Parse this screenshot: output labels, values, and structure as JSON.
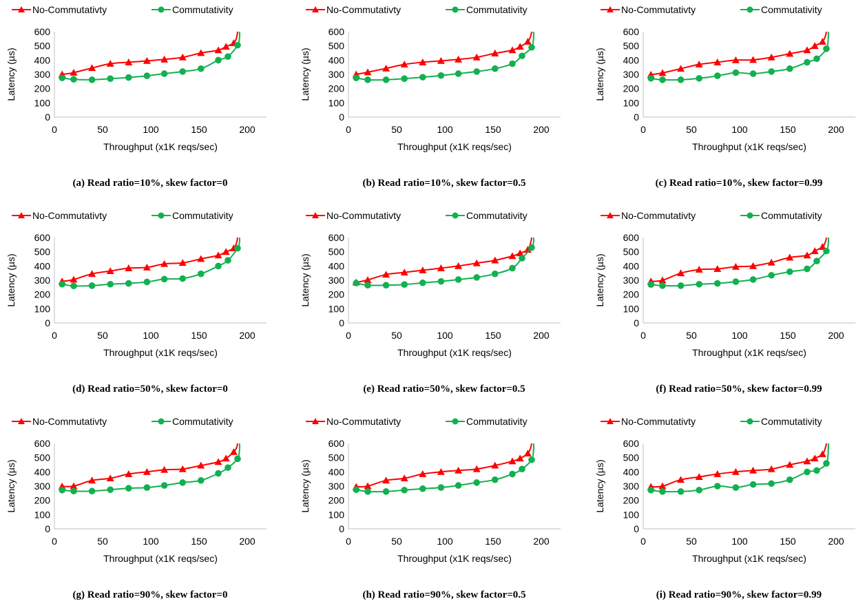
{
  "legend": {
    "series_a": "No-Commutativty",
    "series_b": "Commutativity"
  },
  "colors": {
    "series_a": "#ff0000",
    "series_b": "#12b050",
    "axis": "#bfbfbf"
  },
  "chart_data": [
    {
      "type": "line",
      "caption": "(a) Read ratio=10%, skew factor=0",
      "xlabel": "Throughput (x1K reqs/sec)",
      "ylabel": "Latency (µs)",
      "xlim": [
        0,
        220
      ],
      "ylim": [
        0,
        600
      ],
      "xticks": [
        0,
        50,
        100,
        150,
        200
      ],
      "yticks": [
        0,
        100,
        200,
        300,
        400,
        500,
        600
      ],
      "grid": false,
      "legend_position": "top",
      "series": [
        {
          "name": "No-Commutativty",
          "marker": "triangle",
          "x": [
            8,
            20,
            39,
            58,
            77,
            96,
            114,
            133,
            152,
            170,
            178,
            186,
            189,
            190
          ],
          "y": [
            300,
            312,
            345,
            375,
            385,
            395,
            405,
            420,
            450,
            470,
            495,
            520,
            560,
            600
          ]
        },
        {
          "name": "Commutativity",
          "marker": "circle",
          "x": [
            8,
            20,
            39,
            58,
            77,
            96,
            114,
            133,
            152,
            170,
            180,
            190,
            192,
            192
          ],
          "y": [
            275,
            265,
            262,
            270,
            278,
            290,
            305,
            320,
            340,
            400,
            425,
            505,
            560,
            600
          ]
        }
      ]
    },
    {
      "type": "line",
      "caption": "(b) Read ratio=10%, skew factor=0.5",
      "xlabel": "Throughput (x1K reqs/sec)",
      "ylabel": "Latency (µs)",
      "xlim": [
        0,
        220
      ],
      "ylim": [
        0,
        600
      ],
      "xticks": [
        0,
        50,
        100,
        150,
        200
      ],
      "yticks": [
        0,
        100,
        200,
        300,
        400,
        500,
        600
      ],
      "grid": false,
      "legend_position": "top",
      "series": [
        {
          "name": "No-Commutativty",
          "marker": "triangle",
          "x": [
            8,
            20,
            39,
            58,
            77,
            96,
            114,
            133,
            152,
            170,
            178,
            186,
            189,
            190
          ],
          "y": [
            300,
            315,
            342,
            370,
            385,
            395,
            405,
            420,
            448,
            470,
            495,
            530,
            570,
            600
          ]
        },
        {
          "name": "Commutativity",
          "marker": "circle",
          "x": [
            8,
            20,
            39,
            58,
            77,
            96,
            114,
            133,
            152,
            170,
            180,
            190,
            192,
            192
          ],
          "y": [
            275,
            262,
            262,
            270,
            280,
            292,
            305,
            320,
            340,
            375,
            430,
            490,
            560,
            600
          ]
        }
      ]
    },
    {
      "type": "line",
      "caption": "(c) Read ratio=10%, skew factor=0.99",
      "xlabel": "Throughput (x1K reqs/sec)",
      "ylabel": "Latency (µs)",
      "xlim": [
        0,
        220
      ],
      "ylim": [
        0,
        600
      ],
      "xticks": [
        0,
        50,
        100,
        150,
        200
      ],
      "yticks": [
        0,
        100,
        200,
        300,
        400,
        500,
        600
      ],
      "grid": false,
      "legend_position": "top",
      "series": [
        {
          "name": "No-Commutativty",
          "marker": "triangle",
          "x": [
            8,
            20,
            39,
            58,
            77,
            96,
            114,
            133,
            152,
            170,
            178,
            186,
            189,
            190
          ],
          "y": [
            298,
            310,
            340,
            370,
            385,
            400,
            402,
            420,
            445,
            470,
            500,
            530,
            570,
            600
          ]
        },
        {
          "name": "Commutativity",
          "marker": "circle",
          "x": [
            8,
            20,
            39,
            58,
            77,
            96,
            114,
            133,
            152,
            170,
            180,
            190,
            192,
            192
          ],
          "y": [
            272,
            262,
            262,
            272,
            290,
            312,
            305,
            320,
            340,
            385,
            410,
            480,
            560,
            600
          ]
        }
      ]
    },
    {
      "type": "line",
      "caption": "(d) Read ratio=50%, skew factor=0",
      "xlabel": "Throughput (x1K reqs/sec)",
      "ylabel": "Latency (µs)",
      "xlim": [
        0,
        220
      ],
      "ylim": [
        0,
        600
      ],
      "xticks": [
        0,
        50,
        100,
        150,
        200
      ],
      "yticks": [
        0,
        100,
        200,
        300,
        400,
        500,
        600
      ],
      "grid": false,
      "legend_position": "top",
      "series": [
        {
          "name": "No-Commutativty",
          "marker": "triangle",
          "x": [
            8,
            20,
            39,
            58,
            77,
            96,
            114,
            133,
            152,
            170,
            178,
            186,
            189,
            190
          ],
          "y": [
            292,
            305,
            345,
            365,
            385,
            390,
            415,
            422,
            450,
            475,
            500,
            525,
            565,
            600
          ]
        },
        {
          "name": "Commutativity",
          "marker": "circle",
          "x": [
            8,
            20,
            39,
            58,
            77,
            96,
            114,
            133,
            152,
            170,
            180,
            190,
            192,
            192
          ],
          "y": [
            272,
            260,
            262,
            272,
            278,
            288,
            308,
            312,
            345,
            400,
            440,
            525,
            570,
            600
          ]
        }
      ]
    },
    {
      "type": "line",
      "caption": "(e) Read ratio=50%, skew factor=0.5",
      "xlabel": "Throughput (x1K reqs/sec)",
      "ylabel": "Latency (µs)",
      "xlim": [
        0,
        220
      ],
      "ylim": [
        0,
        600
      ],
      "xticks": [
        0,
        50,
        100,
        150,
        200
      ],
      "yticks": [
        0,
        100,
        200,
        300,
        400,
        500,
        600
      ],
      "grid": false,
      "legend_position": "top",
      "series": [
        {
          "name": "No-Commutativty",
          "marker": "triangle",
          "x": [
            8,
            20,
            39,
            58,
            77,
            96,
            114,
            133,
            152,
            170,
            178,
            186,
            189,
            190
          ],
          "y": [
            285,
            302,
            340,
            355,
            370,
            385,
            400,
            420,
            440,
            470,
            490,
            515,
            565,
            600
          ]
        },
        {
          "name": "Commutativity",
          "marker": "circle",
          "x": [
            8,
            20,
            39,
            58,
            77,
            96,
            114,
            133,
            152,
            170,
            180,
            190,
            192,
            192
          ],
          "y": [
            280,
            265,
            265,
            270,
            282,
            292,
            305,
            320,
            345,
            385,
            455,
            530,
            570,
            600
          ]
        }
      ]
    },
    {
      "type": "line",
      "caption": "(f) Read ratio=50%, skew factor=0.99",
      "xlabel": "Throughput (x1K reqs/sec)",
      "ylabel": "Latency (µs)",
      "xlim": [
        0,
        220
      ],
      "ylim": [
        0,
        600
      ],
      "xticks": [
        0,
        50,
        100,
        150,
        200
      ],
      "yticks": [
        0,
        100,
        200,
        300,
        400,
        500,
        600
      ],
      "grid": false,
      "legend_position": "top",
      "series": [
        {
          "name": "No-Commutativty",
          "marker": "triangle",
          "x": [
            8,
            20,
            39,
            58,
            77,
            96,
            114,
            133,
            152,
            170,
            178,
            186,
            189,
            190
          ],
          "y": [
            292,
            300,
            350,
            375,
            380,
            395,
            400,
            425,
            460,
            475,
            505,
            535,
            570,
            600
          ]
        },
        {
          "name": "Commutativity",
          "marker": "circle",
          "x": [
            8,
            20,
            39,
            58,
            77,
            96,
            114,
            133,
            152,
            170,
            180,
            190,
            192,
            192
          ],
          "y": [
            270,
            262,
            262,
            272,
            278,
            290,
            305,
            335,
            360,
            380,
            435,
            505,
            560,
            600
          ]
        }
      ]
    },
    {
      "type": "line",
      "caption": "(g) Read ratio=90%, skew factor=0",
      "xlabel": "Throughput (x1K reqs/sec)",
      "ylabel": "Latency (µs)",
      "xlim": [
        0,
        220
      ],
      "ylim": [
        0,
        600
      ],
      "xticks": [
        0,
        50,
        100,
        150,
        200
      ],
      "yticks": [
        0,
        100,
        200,
        300,
        400,
        500,
        600
      ],
      "grid": false,
      "legend_position": "top",
      "series": [
        {
          "name": "No-Commutativty",
          "marker": "triangle",
          "x": [
            8,
            20,
            39,
            58,
            77,
            96,
            114,
            133,
            152,
            170,
            178,
            186,
            189,
            190
          ],
          "y": [
            298,
            300,
            340,
            355,
            385,
            400,
            415,
            420,
            445,
            470,
            495,
            540,
            570,
            600
          ]
        },
        {
          "name": "Commutativity",
          "marker": "circle",
          "x": [
            8,
            20,
            39,
            58,
            77,
            96,
            114,
            133,
            152,
            170,
            180,
            190,
            192,
            192
          ],
          "y": [
            272,
            265,
            265,
            275,
            285,
            290,
            305,
            325,
            340,
            390,
            430,
            492,
            560,
            600
          ]
        }
      ]
    },
    {
      "type": "line",
      "caption": "(h) Read ratio=90%, skew factor=0.5",
      "xlabel": "Throughput (x1K reqs/sec)",
      "ylabel": "Latency (µs)",
      "xlim": [
        0,
        220
      ],
      "ylim": [
        0,
        600
      ],
      "xticks": [
        0,
        50,
        100,
        150,
        200
      ],
      "yticks": [
        0,
        100,
        200,
        300,
        400,
        500,
        600
      ],
      "grid": false,
      "legend_position": "top",
      "series": [
        {
          "name": "No-Commutativty",
          "marker": "triangle",
          "x": [
            8,
            20,
            39,
            58,
            77,
            96,
            114,
            133,
            152,
            170,
            178,
            186,
            189,
            190
          ],
          "y": [
            295,
            300,
            340,
            355,
            385,
            400,
            410,
            420,
            445,
            475,
            495,
            530,
            570,
            600
          ]
        },
        {
          "name": "Commutativity",
          "marker": "circle",
          "x": [
            8,
            20,
            39,
            58,
            77,
            96,
            114,
            133,
            152,
            170,
            180,
            190,
            192,
            192
          ],
          "y": [
            275,
            262,
            262,
            272,
            282,
            290,
            305,
            325,
            345,
            385,
            420,
            485,
            560,
            600
          ]
        }
      ]
    },
    {
      "type": "line",
      "caption": "(i) Read ratio=90%, skew factor=0.99",
      "xlabel": "Throughput (x1K reqs/sec)",
      "ylabel": "Latency (µs)",
      "xlim": [
        0,
        220
      ],
      "ylim": [
        0,
        600
      ],
      "xticks": [
        0,
        50,
        100,
        150,
        200
      ],
      "yticks": [
        0,
        100,
        200,
        300,
        400,
        500,
        600
      ],
      "grid": false,
      "legend_position": "top",
      "series": [
        {
          "name": "No-Commutativty",
          "marker": "triangle",
          "x": [
            8,
            20,
            39,
            58,
            77,
            96,
            114,
            133,
            152,
            170,
            178,
            186,
            189,
            190
          ],
          "y": [
            295,
            300,
            345,
            365,
            385,
            400,
            410,
            420,
            450,
            475,
            495,
            525,
            570,
            600
          ]
        },
        {
          "name": "Commutativity",
          "marker": "circle",
          "x": [
            8,
            20,
            39,
            58,
            77,
            96,
            114,
            133,
            152,
            170,
            180,
            190,
            192,
            192
          ],
          "y": [
            272,
            262,
            262,
            272,
            300,
            290,
            312,
            318,
            345,
            400,
            410,
            460,
            560,
            600
          ]
        }
      ]
    }
  ]
}
